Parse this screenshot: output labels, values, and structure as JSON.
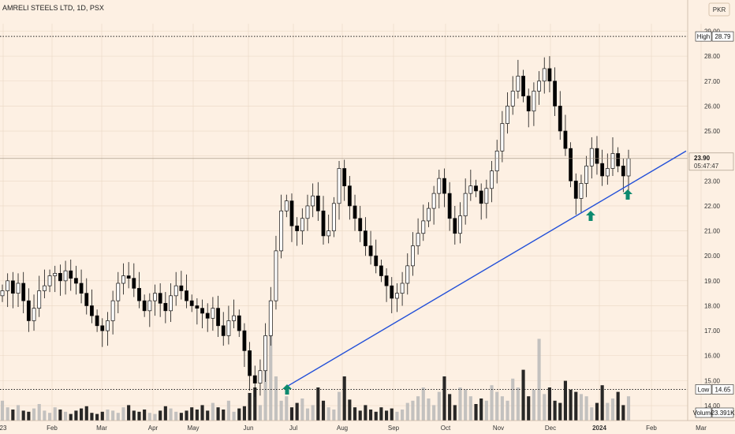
{
  "header": {
    "title": "AMRELI STEELS LTD, 1D, PSX",
    "currency_button": "PKR"
  },
  "colors": {
    "background": "#fdf0e3",
    "grid": "#ead8c4",
    "up_candle": "#ffffff",
    "down_candle": "#000000",
    "trendline": "#2350d8",
    "arrow": "#0d8a6f",
    "volume": "#b8b8b8",
    "volume_dark": "#111111"
  },
  "chart_data": {
    "type": "candlestick",
    "ylim": [
      13.4,
      29.3
    ],
    "y_ticks": [
      "29.00",
      "28.00",
      "27.00",
      "26.00",
      "25.00",
      "24.00",
      "23.00",
      "22.00",
      "21.00",
      "20.00",
      "19.00",
      "18.00",
      "17.00",
      "16.00",
      "15.00",
      "14.00"
    ],
    "x_ticks": [
      "23",
      "Feb",
      "Mar",
      "Apr",
      "May",
      "Jun",
      "Jul",
      "Aug",
      "Sep",
      "Oct",
      "Nov",
      "Dec",
      "2024",
      "Feb",
      "Mar"
    ],
    "x_bold": "2024",
    "high": {
      "label": "High",
      "value": "28.79",
      "price": 28.79
    },
    "low": {
      "label": "Low",
      "value": "14.65",
      "price": 14.65
    },
    "last": {
      "value": "23.90",
      "countdown": "05:47:47",
      "price": 23.9
    },
    "volume": {
      "label": "Volume",
      "value": "23.391K"
    },
    "trendline": {
      "from": [
        "Jun end",
        14.75
      ],
      "to": [
        "Jan end",
        24.2
      ]
    },
    "support_arrows": [
      {
        "date": "Dec 2023",
        "price": 22.0
      },
      {
        "date": "Jan 2024",
        "price": 22.6
      }
    ],
    "closes": [
      18.6,
      19.0,
      18.5,
      18.9,
      18.2,
      17.4,
      17.9,
      18.6,
      18.8,
      19.2,
      19.3,
      19.0,
      19.4,
      19.1,
      18.9,
      18.5,
      18.0,
      17.6,
      17.2,
      17.0,
      17.4,
      18.2,
      18.9,
      19.2,
      19.1,
      18.7,
      18.2,
      17.8,
      18.2,
      18.5,
      18.1,
      17.8,
      18.4,
      18.8,
      18.6,
      18.2,
      18.0,
      17.9,
      17.7,
      17.5,
      17.9,
      17.2,
      16.8,
      17.4,
      17.6,
      17.0,
      16.2,
      15.2,
      14.9,
      15.4,
      16.8,
      18.2,
      20.2,
      21.8,
      22.2,
      21.2,
      21.0,
      21.5,
      22.0,
      22.4,
      21.8,
      20.8,
      21.0,
      22.1,
      23.5,
      22.8,
      22.0,
      21.5,
      21.0,
      20.4,
      20.0,
      19.6,
      19.2,
      18.8,
      18.3,
      18.5,
      18.9,
      19.6,
      20.4,
      20.9,
      21.4,
      21.9,
      22.5,
      23.1,
      22.5,
      21.5,
      20.9,
      21.6,
      22.5,
      22.8,
      22.6,
      22.1,
      22.7,
      23.4,
      24.2,
      25.3,
      26.0,
      26.6,
      27.2,
      26.4,
      25.8,
      26.6,
      27.0,
      27.5,
      27.0,
      26.0,
      25.0,
      24.3,
      23.0,
      22.3,
      22.9,
      23.6,
      24.3,
      23.7,
      23.2,
      23.5,
      24.1,
      23.6,
      23.2,
      23.9
    ],
    "volumes": [
      18,
      12,
      10,
      14,
      9,
      8,
      11,
      15,
      9,
      7,
      12,
      10,
      8,
      6,
      9,
      11,
      13,
      7,
      6,
      8,
      10,
      9,
      7,
      12,
      14,
      9,
      8,
      10,
      7,
      6,
      9,
      13,
      11,
      8,
      7,
      9,
      12,
      10,
      14,
      9,
      16,
      12,
      10,
      18,
      8,
      11,
      13,
      25,
      30,
      14,
      50,
      90,
      40,
      18,
      22,
      12,
      16,
      20,
      11,
      14,
      30,
      18,
      12,
      10,
      26,
      40,
      19,
      12,
      9,
      14,
      10,
      8,
      12,
      9,
      11,
      8,
      10,
      16,
      18,
      22,
      30,
      20,
      14,
      26,
      40,
      24,
      14,
      30,
      28,
      22,
      15,
      20,
      18,
      32,
      26,
      22,
      18,
      38,
      30,
      46,
      22,
      28,
      74,
      24,
      30,
      18,
      16,
      36,
      28,
      26,
      24,
      22,
      12,
      16,
      32,
      16,
      20,
      26,
      14,
      22
    ]
  }
}
